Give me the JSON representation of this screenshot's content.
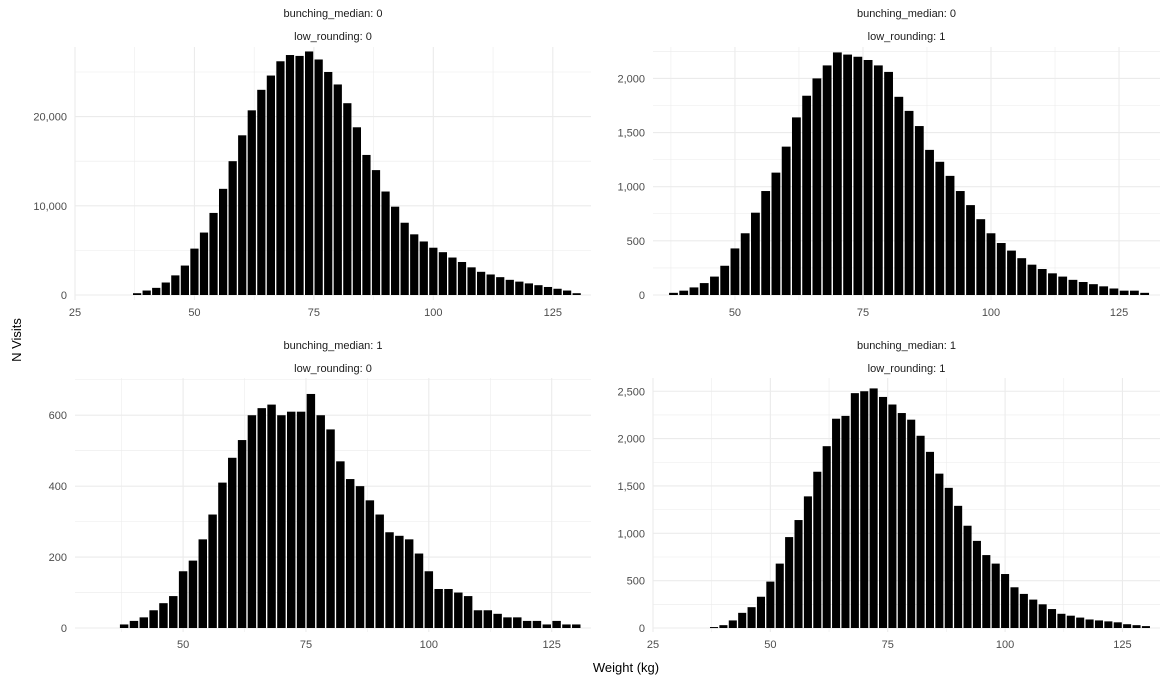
{
  "figure": {
    "xlabel": "Weight (kg)",
    "ylabel": "N Visits"
  },
  "colors": {
    "bar": "#000000",
    "grid": "#ebebeb",
    "background": "#ffffff"
  },
  "chart_data": [
    {
      "type": "bar",
      "strip": [
        "bunching_median: 0",
        "low_rounding: 0"
      ],
      "x": [
        38,
        40,
        42,
        44,
        46,
        48,
        50,
        52,
        54,
        56,
        58,
        60,
        62,
        64,
        66,
        68,
        70,
        72,
        74,
        76,
        78,
        80,
        82,
        84,
        86,
        88,
        90,
        92,
        94,
        96,
        98,
        100,
        102,
        104,
        106,
        108,
        110,
        112,
        114,
        116,
        118,
        120,
        122,
        124,
        126,
        128,
        130
      ],
      "values": [
        200,
        500,
        800,
        1400,
        2200,
        3300,
        5200,
        7000,
        9200,
        11900,
        15000,
        17900,
        20700,
        23000,
        24600,
        26200,
        26900,
        26800,
        27300,
        26400,
        25000,
        23600,
        21500,
        18800,
        15700,
        14000,
        11600,
        9900,
        8100,
        6800,
        6000,
        5300,
        4800,
        4200,
        3700,
        3100,
        2600,
        2300,
        2000,
        1700,
        1500,
        1300,
        1100,
        900,
        700,
        500,
        200
      ],
      "xlim": [
        25,
        133
      ],
      "ylim": [
        0,
        27800
      ],
      "xticks": [
        25,
        50,
        75,
        100,
        125
      ],
      "xtick_labels": [
        "25",
        "50",
        "75",
        "100",
        "125"
      ],
      "yticks": [
        0,
        10000,
        20000
      ],
      "ytick_labels": [
        "0",
        "10,000",
        "20,000"
      ],
      "grid": true
    },
    {
      "type": "bar",
      "strip": [
        "bunching_median: 0",
        "low_rounding: 1"
      ],
      "x": [
        38,
        40,
        42,
        44,
        46,
        48,
        50,
        52,
        54,
        56,
        58,
        60,
        62,
        64,
        66,
        68,
        70,
        72,
        74,
        76,
        78,
        80,
        82,
        84,
        86,
        88,
        90,
        92,
        94,
        96,
        98,
        100,
        102,
        104,
        106,
        108,
        110,
        112,
        114,
        116,
        118,
        120,
        122,
        124,
        126,
        128,
        130
      ],
      "values": [
        20,
        40,
        70,
        110,
        170,
        270,
        430,
        570,
        760,
        960,
        1130,
        1370,
        1640,
        1840,
        2000,
        2120,
        2240,
        2220,
        2200,
        2170,
        2120,
        2060,
        1830,
        1700,
        1560,
        1340,
        1230,
        1100,
        960,
        830,
        700,
        570,
        480,
        410,
        340,
        280,
        240,
        200,
        170,
        140,
        120,
        100,
        80,
        60,
        40,
        40,
        20
      ],
      "xlim": [
        34,
        133
      ],
      "ylim": [
        0,
        2290
      ],
      "xticks": [
        50,
        75,
        100,
        125
      ],
      "xtick_labels": [
        "50",
        "75",
        "100",
        "125"
      ],
      "yticks": [
        0,
        500,
        1000,
        1500,
        2000
      ],
      "ytick_labels": [
        "0",
        "500",
        "1,000",
        "1,500",
        "2,000"
      ],
      "grid": true
    },
    {
      "type": "bar",
      "strip": [
        "bunching_median: 1",
        "low_rounding: 0"
      ],
      "x": [
        38,
        40,
        42,
        44,
        46,
        48,
        50,
        52,
        54,
        56,
        58,
        60,
        62,
        64,
        66,
        68,
        70,
        72,
        74,
        76,
        78,
        80,
        82,
        84,
        86,
        88,
        90,
        92,
        94,
        96,
        98,
        100,
        102,
        104,
        106,
        108,
        110,
        112,
        114,
        116,
        118,
        120,
        122,
        124,
        126,
        128,
        130
      ],
      "values": [
        10,
        20,
        30,
        50,
        70,
        90,
        160,
        190,
        250,
        320,
        410,
        480,
        530,
        600,
        620,
        630,
        600,
        610,
        610,
        660,
        600,
        560,
        470,
        420,
        400,
        360,
        320,
        270,
        260,
        250,
        210,
        160,
        110,
        110,
        100,
        90,
        50,
        50,
        40,
        30,
        30,
        20,
        20,
        10,
        20,
        10,
        10
      ],
      "xlim": [
        28,
        133
      ],
      "ylim": [
        0,
        705
      ],
      "xticks": [
        50,
        75,
        100,
        125
      ],
      "xtick_labels": [
        "50",
        "75",
        "100",
        "125"
      ],
      "yticks": [
        0,
        200,
        400,
        600
      ],
      "ytick_labels": [
        "0",
        "200",
        "400",
        "600"
      ],
      "grid": true
    },
    {
      "type": "bar",
      "strip": [
        "bunching_median: 1",
        "low_rounding: 1"
      ],
      "x": [
        38,
        40,
        42,
        44,
        46,
        48,
        50,
        52,
        54,
        56,
        58,
        60,
        62,
        64,
        66,
        68,
        70,
        72,
        74,
        76,
        78,
        80,
        82,
        84,
        86,
        88,
        90,
        92,
        94,
        96,
        98,
        100,
        102,
        104,
        106,
        108,
        110,
        112,
        114,
        116,
        118,
        120,
        122,
        124,
        126,
        128,
        130
      ],
      "values": [
        10,
        30,
        80,
        160,
        220,
        330,
        490,
        680,
        960,
        1140,
        1390,
        1650,
        1920,
        2210,
        2240,
        2480,
        2500,
        2530,
        2440,
        2360,
        2270,
        2200,
        2030,
        1860,
        1630,
        1480,
        1290,
        1080,
        920,
        770,
        680,
        570,
        430,
        360,
        300,
        250,
        200,
        150,
        130,
        110,
        90,
        80,
        70,
        60,
        40,
        30,
        20
      ],
      "xlim": [
        25,
        133
      ],
      "ylim": [
        0,
        2640
      ],
      "xticks": [
        25,
        50,
        75,
        100,
        125
      ],
      "xtick_labels": [
        "25",
        "50",
        "75",
        "100",
        "125"
      ],
      "yticks": [
        0,
        500,
        1000,
        1500,
        2000,
        2500
      ],
      "ytick_labels": [
        "0",
        "500",
        "1,000",
        "1,500",
        "2,000",
        "2,500"
      ],
      "grid": true
    }
  ]
}
